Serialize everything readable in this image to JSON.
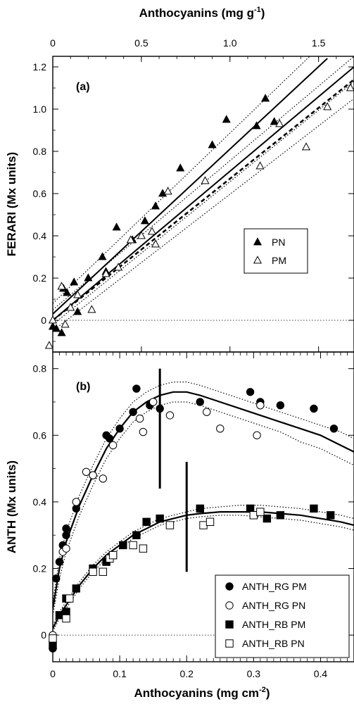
{
  "chart_data": [
    {
      "panel": "a",
      "panel_label": "(a)",
      "type": "scatter",
      "top_xlabel": "Anthocyanins (mg g",
      "top_xlabel_sup": "-1",
      "top_xlabel_close": ")",
      "top_xlim": [
        0,
        1.7
      ],
      "top_xticks": [
        "0",
        "0.5",
        "1.0",
        "1.5"
      ],
      "top_xtick_values": [
        0,
        0.5,
        1.0,
        1.5
      ],
      "ylabel": "FERARI (Mx units)",
      "ylim": [
        -0.15,
        1.25
      ],
      "yticks": [
        "0",
        "0.2",
        "0.4",
        "0.6",
        "0.8",
        "1.0",
        "1.2"
      ],
      "ytick_values": [
        0,
        0.2,
        0.4,
        0.6,
        0.8,
        1.0,
        1.2
      ],
      "legend_position": "right-middle",
      "series": [
        {
          "name": "PN",
          "marker": "filled-triangle",
          "points": [
            [
              0.0,
              -0.03
            ],
            [
              0.02,
              -0.04
            ],
            [
              0.05,
              -0.06
            ],
            [
              0.06,
              0.15
            ],
            [
              0.08,
              0.13
            ],
            [
              0.12,
              0.18
            ],
            [
              0.14,
              0.04
            ],
            [
              0.2,
              0.2
            ],
            [
              0.28,
              0.3
            ],
            [
              0.3,
              0.23
            ],
            [
              0.36,
              0.44
            ],
            [
              0.45,
              0.38
            ],
            [
              0.52,
              0.47
            ],
            [
              0.58,
              0.54
            ],
            [
              0.62,
              0.6
            ],
            [
              0.72,
              0.72
            ],
            [
              0.9,
              0.83
            ],
            [
              0.98,
              0.95
            ],
            [
              1.15,
              0.92
            ],
            [
              1.2,
              1.05
            ],
            [
              1.25,
              0.94
            ]
          ],
          "fit": {
            "x": [
              0,
              1.55
            ],
            "y": [
              0.03,
              1.24
            ]
          },
          "fit_upper": {
            "x": [
              0,
              1.45
            ],
            "y": [
              0.08,
              1.25
            ]
          },
          "fit_lower": {
            "x": [
              0,
              1.7
            ],
            "y": [
              -0.02,
              1.13
            ]
          }
        },
        {
          "name": "PM",
          "marker": "open-triangle",
          "points": [
            [
              -0.02,
              -0.12
            ],
            [
              0.0,
              0.0
            ],
            [
              0.05,
              0.16
            ],
            [
              0.07,
              -0.02
            ],
            [
              0.1,
              0.06
            ],
            [
              0.14,
              0.12
            ],
            [
              0.22,
              0.05
            ],
            [
              0.3,
              0.22
            ],
            [
              0.37,
              0.25
            ],
            [
              0.44,
              0.38
            ],
            [
              0.5,
              0.4
            ],
            [
              0.56,
              0.42
            ],
            [
              0.58,
              0.36
            ],
            [
              0.65,
              0.61
            ],
            [
              0.86,
              0.66
            ],
            [
              1.17,
              0.73
            ],
            [
              1.28,
              0.93
            ],
            [
              1.43,
              0.82
            ],
            [
              1.55,
              1.01
            ],
            [
              1.68,
              1.1
            ]
          ],
          "fit": {
            "x": [
              0,
              1.7
            ],
            "y": [
              0.0,
              1.2
            ]
          },
          "fit_upper": {
            "x": [
              0,
              1.7
            ],
            "y": [
              0.05,
              1.25
            ]
          },
          "fit_lower": {
            "x": [
              0,
              1.7
            ],
            "y": [
              -0.05,
              1.05
            ]
          },
          "mean_line": {
            "x": [
              0,
              1.7
            ],
            "y": [
              0.0,
              1.14
            ]
          }
        }
      ]
    },
    {
      "panel": "b",
      "panel_label": "(b)",
      "type": "scatter",
      "xlabel": "Anthocyanins (mg cm",
      "xlabel_sup": "-2",
      "xlabel_close": ")",
      "xlim": [
        0,
        0.45
      ],
      "xticks": [
        "0",
        "0.1",
        "0.2",
        "0.3",
        "0.4"
      ],
      "xtick_values": [
        0,
        0.1,
        0.2,
        0.3,
        0.4
      ],
      "ylabel": "ANTH (Mx units)",
      "ylim": [
        -0.08,
        0.85
      ],
      "yticks": [
        "0",
        "0.2",
        "0.4",
        "0.6",
        "0.8"
      ],
      "ytick_values": [
        0,
        0.2,
        0.4,
        0.6,
        0.8
      ],
      "legend_position": "bottom-right",
      "vertical_markers": [
        {
          "x": 0.16,
          "y": [
            0.44,
            0.8
          ]
        },
        {
          "x": 0.2,
          "y": [
            0.19,
            0.52
          ]
        }
      ],
      "series": [
        {
          "name": "ANTH_RG PM",
          "marker": "filled-circle",
          "points": [
            [
              0.0,
              -0.04
            ],
            [
              0.005,
              0.17
            ],
            [
              0.01,
              0.22
            ],
            [
              0.015,
              0.27
            ],
            [
              0.02,
              0.3
            ],
            [
              0.02,
              0.32
            ],
            [
              0.035,
              0.38
            ],
            [
              0.06,
              0.48
            ],
            [
              0.08,
              0.6
            ],
            [
              0.085,
              0.59
            ],
            [
              0.1,
              0.62
            ],
            [
              0.12,
              0.67
            ],
            [
              0.125,
              0.74
            ],
            [
              0.145,
              0.69
            ],
            [
              0.16,
              0.68
            ],
            [
              0.22,
              0.7
            ],
            [
              0.295,
              0.73
            ],
            [
              0.31,
              0.7
            ],
            [
              0.34,
              0.69
            ],
            [
              0.39,
              0.68
            ],
            [
              0.42,
              0.62
            ]
          ]
        },
        {
          "name": "ANTH_RG PN",
          "marker": "open-circle",
          "points": [
            [
              0.0,
              0.0
            ],
            [
              0.015,
              0.25
            ],
            [
              0.02,
              0.26
            ],
            [
              0.035,
              0.4
            ],
            [
              0.05,
              0.49
            ],
            [
              0.06,
              0.48
            ],
            [
              0.075,
              0.47
            ],
            [
              0.09,
              0.57
            ],
            [
              0.13,
              0.65
            ],
            [
              0.135,
              0.61
            ],
            [
              0.15,
              0.7
            ],
            [
              0.175,
              0.66
            ],
            [
              0.23,
              0.67
            ],
            [
              0.25,
              0.62
            ],
            [
              0.305,
              0.6
            ],
            [
              0.31,
              0.69
            ]
          ]
        },
        {
          "name": "ANTH_RB PM",
          "marker": "filled-square",
          "points": [
            [
              0.0,
              -0.03
            ],
            [
              0.01,
              0.06
            ],
            [
              0.02,
              0.07
            ],
            [
              0.02,
              0.11
            ],
            [
              0.035,
              0.14
            ],
            [
              0.06,
              0.2
            ],
            [
              0.08,
              0.22
            ],
            [
              0.09,
              0.24
            ],
            [
              0.105,
              0.27
            ],
            [
              0.125,
              0.3
            ],
            [
              0.14,
              0.34
            ],
            [
              0.16,
              0.35
            ],
            [
              0.22,
              0.38
            ],
            [
              0.295,
              0.38
            ],
            [
              0.32,
              0.35
            ],
            [
              0.34,
              0.36
            ],
            [
              0.39,
              0.38
            ],
            [
              0.415,
              0.36
            ]
          ]
        },
        {
          "name": "ANTH_RB PN",
          "marker": "open-square",
          "points": [
            [
              0.0,
              -0.01
            ],
            [
              0.02,
              0.05
            ],
            [
              0.025,
              0.11
            ],
            [
              0.06,
              0.19
            ],
            [
              0.075,
              0.19
            ],
            [
              0.085,
              0.23
            ],
            [
              0.09,
              0.24
            ],
            [
              0.12,
              0.27
            ],
            [
              0.135,
              0.26
            ],
            [
              0.175,
              0.33
            ],
            [
              0.225,
              0.33
            ],
            [
              0.235,
              0.34
            ],
            [
              0.3,
              0.36
            ],
            [
              0.31,
              0.37
            ]
          ]
        }
      ],
      "fits": [
        {
          "name": "RG",
          "x": [
            0,
            0.01,
            0.02,
            0.04,
            0.06,
            0.08,
            0.1,
            0.12,
            0.14,
            0.16,
            0.18,
            0.2,
            0.22,
            0.25,
            0.28,
            0.31,
            0.34,
            0.37,
            0.4,
            0.43,
            0.45
          ],
          "y": [
            0.08,
            0.2,
            0.28,
            0.39,
            0.48,
            0.56,
            0.62,
            0.67,
            0.7,
            0.72,
            0.73,
            0.73,
            0.72,
            0.7,
            0.68,
            0.66,
            0.64,
            0.62,
            0.6,
            0.57,
            0.55
          ],
          "upper": [
            0.1,
            0.23,
            0.31,
            0.42,
            0.51,
            0.59,
            0.65,
            0.7,
            0.73,
            0.75,
            0.76,
            0.76,
            0.75,
            0.73,
            0.71,
            0.69,
            0.67,
            0.65,
            0.63,
            0.61,
            0.59
          ],
          "lower": [
            0.06,
            0.17,
            0.25,
            0.36,
            0.45,
            0.53,
            0.59,
            0.64,
            0.67,
            0.69,
            0.7,
            0.7,
            0.69,
            0.67,
            0.65,
            0.63,
            0.61,
            0.58,
            0.56,
            0.53,
            0.51
          ]
        },
        {
          "name": "RB",
          "x": [
            0,
            0.01,
            0.02,
            0.04,
            0.06,
            0.08,
            0.1,
            0.12,
            0.14,
            0.16,
            0.18,
            0.2,
            0.22,
            0.25,
            0.28,
            0.31,
            0.34,
            0.37,
            0.4,
            0.43,
            0.45
          ],
          "y": [
            0.02,
            0.06,
            0.09,
            0.15,
            0.2,
            0.24,
            0.27,
            0.3,
            0.32,
            0.34,
            0.35,
            0.36,
            0.365,
            0.37,
            0.37,
            0.37,
            0.365,
            0.36,
            0.35,
            0.34,
            0.33
          ],
          "upper": [
            0.03,
            0.07,
            0.1,
            0.16,
            0.21,
            0.25,
            0.28,
            0.31,
            0.33,
            0.35,
            0.36,
            0.37,
            0.38,
            0.385,
            0.39,
            0.39,
            0.385,
            0.38,
            0.37,
            0.36,
            0.35
          ],
          "lower": [
            0.01,
            0.05,
            0.08,
            0.14,
            0.19,
            0.23,
            0.26,
            0.29,
            0.31,
            0.33,
            0.34,
            0.35,
            0.355,
            0.36,
            0.36,
            0.355,
            0.35,
            0.345,
            0.335,
            0.325,
            0.315
          ]
        }
      ]
    }
  ]
}
